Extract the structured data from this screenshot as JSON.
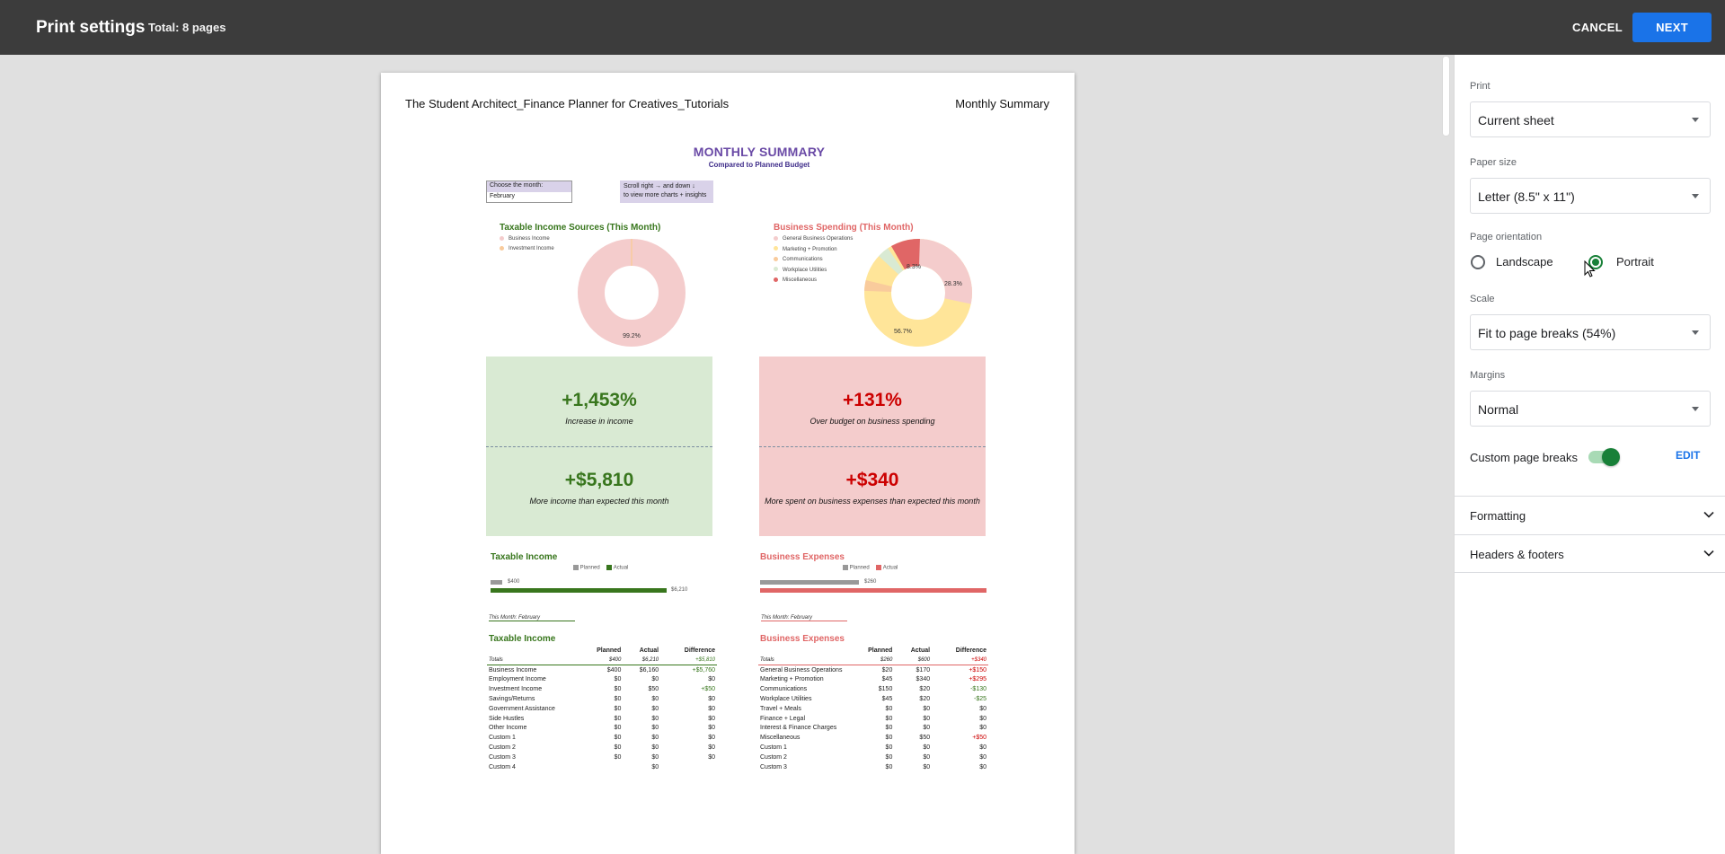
{
  "topbar": {
    "title": "Print settings",
    "total": "Total: 8 pages",
    "cancel_label": "CANCEL",
    "next_label": "NEXT"
  },
  "preview": {
    "header_left": "The Student Architect_Finance Planner for Creatives_Tutorials",
    "header_right": "Monthly Summary",
    "summary_title": "MONTHLY SUMMARY",
    "summary_subtitle": "Compared to Planned Budget",
    "month_label": "Choose the month:",
    "month_value": "February",
    "scroll_note_line1": "Scroll right → and down ↓",
    "scroll_note_line2": "to view more charts + insights",
    "income_chart": {
      "title": "Taxable Income Sources (This Month)",
      "legend": [
        "Business Income",
        "Investment Income"
      ],
      "slice_label": "99.2%"
    },
    "spending_chart": {
      "title": "Business Spending (This Month)",
      "legend": [
        "General Business Operations",
        "Marketing + Promotion",
        "Communications",
        "Workplace Utilities",
        "Miscellaneous"
      ],
      "labels": [
        "8.3%",
        "28.3%",
        "56.7%"
      ]
    },
    "kpi_income": {
      "big1": "+1,453%",
      "small1": "Increase in income",
      "big2": "+$5,810",
      "small2": "More income than expected this month"
    },
    "kpi_spending": {
      "big1": "+131%",
      "small1": "Over budget on business spending",
      "big2": "+$340",
      "small2": "More spent on business expenses than expected this month"
    },
    "income_bars": {
      "title": "Taxable Income",
      "legend_planned": "Planned",
      "legend_actual": "Actual",
      "planned_value": "$400",
      "actual_value": "$6,210"
    },
    "expense_bars": {
      "title": "Business Expenses",
      "legend_planned": "Planned",
      "legend_actual": "Actual",
      "planned_value": "$260"
    },
    "this_month_label": "This Month: February",
    "income_table": {
      "title": "Taxable Income",
      "columns": [
        "",
        "Planned",
        "Actual",
        "Difference"
      ],
      "totals": [
        "Totals",
        "$400",
        "$6,210",
        "+$5,810"
      ],
      "rows": [
        [
          "Business Income",
          "$400",
          "$6,160",
          "+$5,760"
        ],
        [
          "Employment Income",
          "$0",
          "$0",
          "$0"
        ],
        [
          "Investment Income",
          "$0",
          "$50",
          "+$50"
        ],
        [
          "Savings/Returns",
          "$0",
          "$0",
          "$0"
        ],
        [
          "Government Assistance",
          "$0",
          "$0",
          "$0"
        ],
        [
          "Side Hustles",
          "$0",
          "$0",
          "$0"
        ],
        [
          "Other Income",
          "$0",
          "$0",
          "$0"
        ],
        [
          "Custom 1",
          "$0",
          "$0",
          "$0"
        ],
        [
          "Custom 2",
          "$0",
          "$0",
          "$0"
        ],
        [
          "Custom 3",
          "$0",
          "$0",
          "$0"
        ],
        [
          "Custom 4",
          "",
          "$0",
          ""
        ]
      ]
    },
    "expense_table": {
      "title": "Business Expenses",
      "columns": [
        "",
        "Planned",
        "Actual",
        "Difference"
      ],
      "totals": [
        "Totals",
        "$260",
        "$600",
        "+$340"
      ],
      "rows": [
        [
          "General Business Operations",
          "$20",
          "$170",
          "+$150"
        ],
        [
          "Marketing + Promotion",
          "$45",
          "$340",
          "+$295"
        ],
        [
          "Communications",
          "$150",
          "$20",
          "-$130"
        ],
        [
          "Workplace Utilities",
          "$45",
          "$20",
          "-$25"
        ],
        [
          "Travel + Meals",
          "$0",
          "$0",
          "$0"
        ],
        [
          "Finance + Legal",
          "$0",
          "$0",
          "$0"
        ],
        [
          "Interest & Finance Charges",
          "$0",
          "$0",
          "$0"
        ],
        [
          "Miscellaneous",
          "$0",
          "$50",
          "+$50"
        ],
        [
          "Custom 1",
          "$0",
          "$0",
          "$0"
        ],
        [
          "Custom 2",
          "$0",
          "$0",
          "$0"
        ],
        [
          "Custom 3",
          "$0",
          "$0",
          "$0"
        ]
      ]
    }
  },
  "panel": {
    "print_label": "Print",
    "print_value": "Current sheet",
    "paper_label": "Paper size",
    "paper_value": "Letter (8.5\" x 11\")",
    "orientation_label": "Page orientation",
    "landscape_label": "Landscape",
    "portrait_label": "Portrait",
    "scale_label": "Scale",
    "scale_value": "Fit to page breaks (54%)",
    "margins_label": "Margins",
    "margins_value": "Normal",
    "custom_breaks_label": "Custom page breaks",
    "edit_label": "EDIT",
    "formatting_label": "Formatting",
    "headers_label": "Headers & footers"
  },
  "colors": {
    "topbar": "#3c3c3c",
    "accent": "#1a73e8",
    "green": "#188038",
    "income_green": "#38761d",
    "expense_red": "#e06666",
    "kpi_green_bg": "#d9ead3",
    "kpi_red_bg": "#f4cccc"
  }
}
